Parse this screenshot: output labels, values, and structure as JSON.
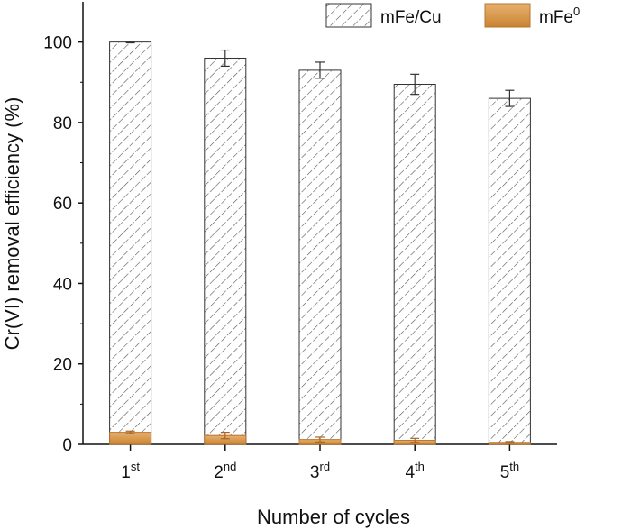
{
  "chart_data": {
    "type": "bar",
    "title": "",
    "xlabel": "Number of cycles",
    "ylabel": "Cr(VI) removal efficiency (%)",
    "ylim": [
      0,
      110
    ],
    "yticks": [
      0,
      20,
      40,
      60,
      80,
      100
    ],
    "categories": [
      {
        "base": "1",
        "sup": "st"
      },
      {
        "base": "2",
        "sup": "nd"
      },
      {
        "base": "3",
        "sup": "rd"
      },
      {
        "base": "4",
        "sup": "th"
      },
      {
        "base": "5",
        "sup": "th"
      }
    ],
    "series": [
      {
        "name": "mFe/Cu",
        "legend_base": "mFe/Cu",
        "legend_sup": "",
        "values": [
          100.0,
          96.0,
          93.0,
          89.5,
          86.0
        ],
        "errors": [
          0.2,
          2.0,
          2.0,
          2.5,
          2.0
        ],
        "fill": "hatched",
        "color": "#555555"
      },
      {
        "name": "mFe0",
        "legend_base": "mFe",
        "legend_sup": "0",
        "values": [
          3.0,
          2.2,
          1.2,
          1.0,
          0.5
        ],
        "errors": [
          0.3,
          0.8,
          0.6,
          0.5,
          0.2
        ],
        "fill": "solid",
        "color": "#d9974a"
      }
    ],
    "legend_position": "top-right"
  }
}
